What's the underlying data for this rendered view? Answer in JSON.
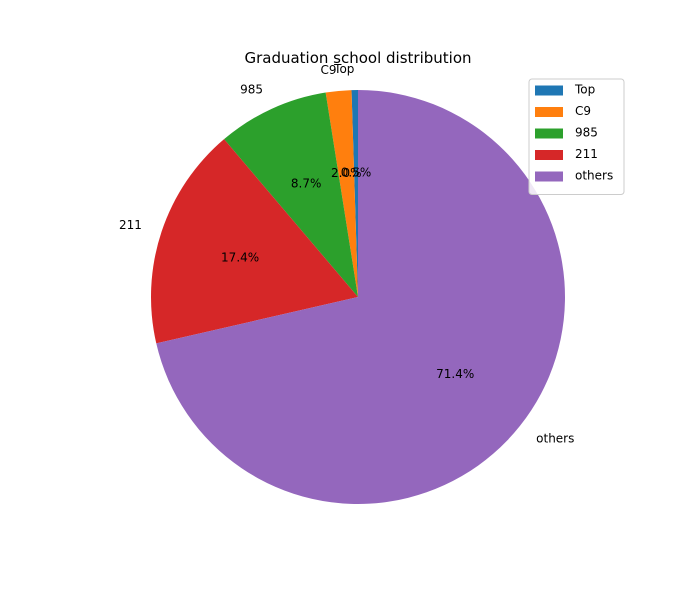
{
  "chart_data": {
    "type": "pie",
    "title": "Graduation school distribution",
    "start_angle_deg": 90,
    "direction": "counterclockwise",
    "slices": [
      {
        "label": "Top",
        "value": 0.5,
        "pct_label": "0.5%",
        "color": "#1f77b4"
      },
      {
        "label": "C9",
        "value": 2.0,
        "pct_label": "2.0%",
        "color": "#ff7f0e"
      },
      {
        "label": "985",
        "value": 8.7,
        "pct_label": "8.7%",
        "color": "#2ca02c"
      },
      {
        "label": "211",
        "value": 17.4,
        "pct_label": "17.4%",
        "color": "#d62728"
      },
      {
        "label": "others",
        "value": 71.4,
        "pct_label": "71.4%",
        "color": "#9467bd"
      }
    ],
    "legend": {
      "placement": "top-right",
      "entries": [
        "Top",
        "C9",
        "985",
        "211",
        "others"
      ]
    }
  }
}
